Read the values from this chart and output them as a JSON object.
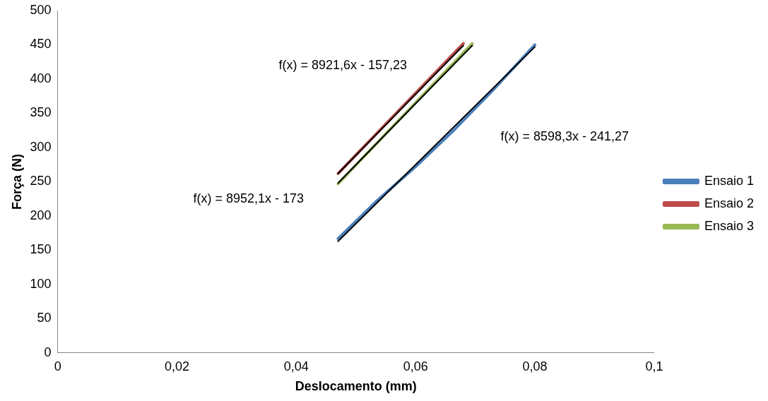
{
  "chart_data": {
    "type": "line",
    "xlabel": "Deslocamento (mm)",
    "ylabel": "Força (N)",
    "xlim": [
      0,
      0.1
    ],
    "xticks": [
      0,
      {
        "value": 0.02,
        "label": "0,02"
      },
      {
        "value": 0.04,
        "label": "0,04"
      },
      {
        "value": 0.06,
        "label": "0,06"
      },
      {
        "value": 0.08,
        "label": "0,08"
      },
      {
        "value": 0.1,
        "label": "0,1"
      }
    ],
    "ylim": [
      0,
      500
    ],
    "yticks": [
      0,
      50,
      100,
      150,
      200,
      250,
      300,
      350,
      400,
      450,
      500
    ],
    "grid": false,
    "legend": "right",
    "marker": "none",
    "line_style": "solid",
    "series": [
      {
        "name": "Ensaio 1",
        "color": "#4a7ebb",
        "x": [
          0.047,
          0.0535,
          0.06,
          0.0665,
          0.073,
          0.08
        ],
        "values": [
          167,
          222,
          272,
          326,
          384,
          450
        ]
      },
      {
        "name": "Ensaio 2",
        "color": "#be4b48",
        "x": [
          0.047,
          0.068
        ],
        "values": [
          262,
          452
        ]
      },
      {
        "name": "Ensaio 3",
        "color": "#98b954",
        "x": [
          0.047,
          0.0695
        ],
        "values": [
          247,
          452
        ]
      },
      {
        "color": "#000000",
        "x": [
          0.047,
          0.08
        ],
        "values": [
          163,
          447
        ]
      },
      {
        "color": "#000000",
        "x": [
          0.047,
          0.068
        ],
        "values": [
          262,
          449
        ]
      },
      {
        "color": "#000000",
        "x": [
          0.047,
          0.0695
        ],
        "values": [
          248,
          449
        ]
      }
    ],
    "annotations": [
      "f(x) = 8921,6x - 157,23",
      "f(x) = 8598,3x - 241,27",
      "f(x) = 8952,1x - 173"
    ]
  }
}
